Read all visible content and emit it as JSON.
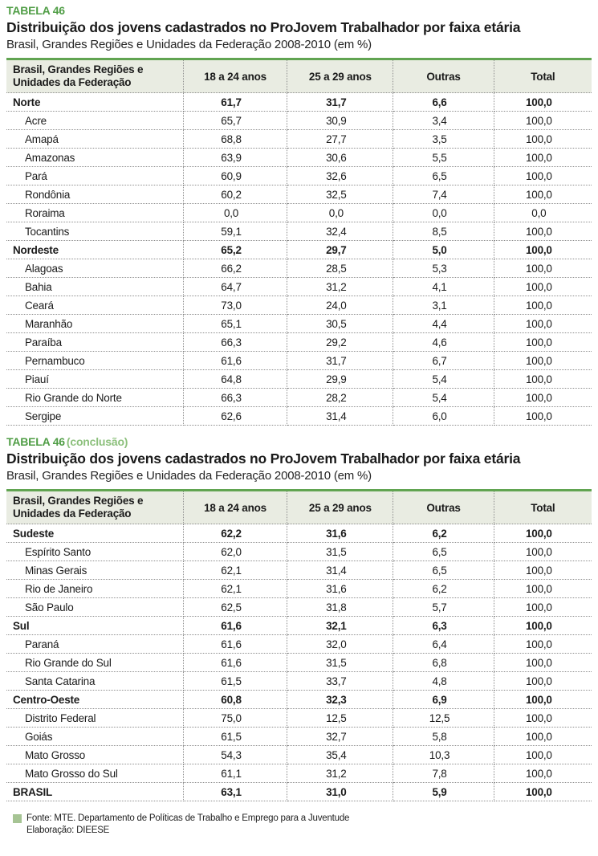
{
  "colors": {
    "tag_green": "#4f9d45",
    "suffix_green": "#8cc07c",
    "rule_green": "#61a451",
    "header_bg": "#e9ece2",
    "footer_square_green": "#a6c494"
  },
  "footer": {
    "source": "Fonte: MTE. Departamento de Políticas de Trabalho e Emprego para a Juventude",
    "elaboration": "Elaboração: DIEESE"
  },
  "tables": [
    {
      "tag": "TABELA 46",
      "tag_suffix": "",
      "title": "Distribuição dos jovens cadastrados no ProJovem Trabalhador por faixa etária",
      "subtitle": "Brasil, Grandes Regiões e Unidades da Federação 2008-2010 (em %)",
      "columns": [
        "Brasil, Grandes Regiões e Unidades da Federação",
        "18 a 24 anos",
        "25 a 29 anos",
        "Outras",
        "Total"
      ],
      "rows": [
        {
          "label": "Norte",
          "bold": true,
          "indent": false,
          "values": [
            "61,7",
            "31,7",
            "6,6",
            "100,0"
          ]
        },
        {
          "label": "Acre",
          "bold": false,
          "indent": true,
          "values": [
            "65,7",
            "30,9",
            "3,4",
            "100,0"
          ]
        },
        {
          "label": "Amapá",
          "bold": false,
          "indent": true,
          "values": [
            "68,8",
            "27,7",
            "3,5",
            "100,0"
          ]
        },
        {
          "label": "Amazonas",
          "bold": false,
          "indent": true,
          "values": [
            "63,9",
            "30,6",
            "5,5",
            "100,0"
          ]
        },
        {
          "label": "Pará",
          "bold": false,
          "indent": true,
          "values": [
            "60,9",
            "32,6",
            "6,5",
            "100,0"
          ]
        },
        {
          "label": "Rondônia",
          "bold": false,
          "indent": true,
          "values": [
            "60,2",
            "32,5",
            "7,4",
            "100,0"
          ]
        },
        {
          "label": "Roraima",
          "bold": false,
          "indent": true,
          "values": [
            "0,0",
            "0,0",
            "0,0",
            "0,0"
          ]
        },
        {
          "label": "Tocantins",
          "bold": false,
          "indent": true,
          "values": [
            "59,1",
            "32,4",
            "8,5",
            "100,0"
          ]
        },
        {
          "label": "Nordeste",
          "bold": true,
          "indent": false,
          "values": [
            "65,2",
            "29,7",
            "5,0",
            "100,0"
          ]
        },
        {
          "label": "Alagoas",
          "bold": false,
          "indent": true,
          "values": [
            "66,2",
            "28,5",
            "5,3",
            "100,0"
          ]
        },
        {
          "label": "Bahia",
          "bold": false,
          "indent": true,
          "values": [
            "64,7",
            "31,2",
            "4,1",
            "100,0"
          ]
        },
        {
          "label": "Ceará",
          "bold": false,
          "indent": true,
          "values": [
            "73,0",
            "24,0",
            "3,1",
            "100,0"
          ]
        },
        {
          "label": "Maranhão",
          "bold": false,
          "indent": true,
          "values": [
            "65,1",
            "30,5",
            "4,4",
            "100,0"
          ]
        },
        {
          "label": "Paraíba",
          "bold": false,
          "indent": true,
          "values": [
            "66,3",
            "29,2",
            "4,6",
            "100,0"
          ]
        },
        {
          "label": "Pernambuco",
          "bold": false,
          "indent": true,
          "values": [
            "61,6",
            "31,7",
            "6,7",
            "100,0"
          ]
        },
        {
          "label": "Piauí",
          "bold": false,
          "indent": true,
          "values": [
            "64,8",
            "29,9",
            "5,4",
            "100,0"
          ]
        },
        {
          "label": "Rio Grande do Norte",
          "bold": false,
          "indent": true,
          "values": [
            "66,3",
            "28,2",
            "5,4",
            "100,0"
          ]
        },
        {
          "label": "Sergipe",
          "bold": false,
          "indent": true,
          "values": [
            "62,6",
            "31,4",
            "6,0",
            "100,0"
          ]
        }
      ]
    },
    {
      "tag": "TABELA 46",
      "tag_suffix": "(conclusão)",
      "title": "Distribuição dos jovens cadastrados no ProJovem Trabalhador por faixa etária",
      "subtitle": "Brasil, Grandes Regiões e Unidades da Federação 2008-2010 (em %)",
      "columns": [
        "Brasil, Grandes Regiões e Unidades da Federação",
        "18 a 24 anos",
        "25 a 29 anos",
        "Outras",
        "Total"
      ],
      "rows": [
        {
          "label": "Sudeste",
          "bold": true,
          "indent": false,
          "values": [
            "62,2",
            "31,6",
            "6,2",
            "100,0"
          ]
        },
        {
          "label": "Espírito Santo",
          "bold": false,
          "indent": true,
          "values": [
            "62,0",
            "31,5",
            "6,5",
            "100,0"
          ]
        },
        {
          "label": "Minas Gerais",
          "bold": false,
          "indent": true,
          "values": [
            "62,1",
            "31,4",
            "6,5",
            "100,0"
          ]
        },
        {
          "label": "Rio de Janeiro",
          "bold": false,
          "indent": true,
          "values": [
            "62,1",
            "31,6",
            "6,2",
            "100,0"
          ]
        },
        {
          "label": "São Paulo",
          "bold": false,
          "indent": true,
          "values": [
            "62,5",
            "31,8",
            "5,7",
            "100,0"
          ]
        },
        {
          "label": "Sul",
          "bold": true,
          "indent": false,
          "values": [
            "61,6",
            "32,1",
            "6,3",
            "100,0"
          ]
        },
        {
          "label": "Paraná",
          "bold": false,
          "indent": true,
          "values": [
            "61,6",
            "32,0",
            "6,4",
            "100,0"
          ]
        },
        {
          "label": "Rio Grande do Sul",
          "bold": false,
          "indent": true,
          "values": [
            "61,6",
            "31,5",
            "6,8",
            "100,0"
          ]
        },
        {
          "label": "Santa Catarina",
          "bold": false,
          "indent": true,
          "values": [
            "61,5",
            "33,7",
            "4,8",
            "100,0"
          ]
        },
        {
          "label": "Centro-Oeste",
          "bold": true,
          "indent": false,
          "values": [
            "60,8",
            "32,3",
            "6,9",
            "100,0"
          ]
        },
        {
          "label": "Distrito Federal",
          "bold": false,
          "indent": true,
          "values": [
            "75,0",
            "12,5",
            "12,5",
            "100,0"
          ]
        },
        {
          "label": "Goiás",
          "bold": false,
          "indent": true,
          "values": [
            "61,5",
            "32,7",
            "5,8",
            "100,0"
          ]
        },
        {
          "label": "Mato Grosso",
          "bold": false,
          "indent": true,
          "values": [
            "54,3",
            "35,4",
            "10,3",
            "100,0"
          ]
        },
        {
          "label": "Mato Grosso do Sul",
          "bold": false,
          "indent": true,
          "values": [
            "61,1",
            "31,2",
            "7,8",
            "100,0"
          ]
        },
        {
          "label": "BRASIL",
          "bold": true,
          "indent": false,
          "values": [
            "63,1",
            "31,0",
            "5,9",
            "100,0"
          ]
        }
      ]
    }
  ]
}
